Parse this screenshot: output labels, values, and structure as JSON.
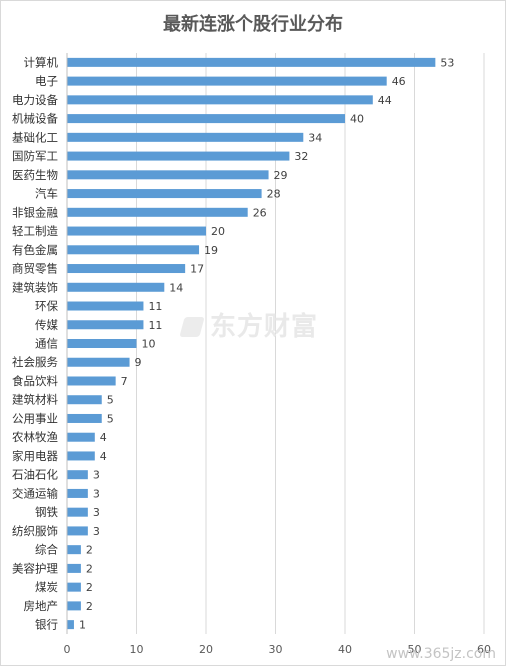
{
  "chart_data": {
    "type": "bar",
    "orientation": "horizontal",
    "title": "最新连涨个股行业分布",
    "categories": [
      "计算机",
      "电子",
      "电力设备",
      "机械设备",
      "基础化工",
      "国防军工",
      "医药生物",
      "汽车",
      "非银金融",
      "轻工制造",
      "有色金属",
      "商贸零售",
      "建筑装饰",
      "环保",
      "传媒",
      "通信",
      "社会服务",
      "食品饮料",
      "建筑材料",
      "公用事业",
      "农林牧渔",
      "家用电器",
      "石油石化",
      "交通运输",
      "钢铁",
      "纺织服饰",
      "综合",
      "美容护理",
      "煤炭",
      "房地产",
      "银行"
    ],
    "values": [
      53,
      46,
      44,
      40,
      34,
      32,
      29,
      28,
      26,
      20,
      19,
      17,
      14,
      11,
      11,
      10,
      9,
      7,
      5,
      5,
      4,
      4,
      3,
      3,
      3,
      3,
      2,
      2,
      2,
      2,
      1
    ],
    "xlim": [
      0,
      60
    ],
    "xticks": [
      "0",
      "10",
      "20",
      "30",
      "40",
      "50",
      "60"
    ],
    "xlabel": "",
    "ylabel": "",
    "grid": "vertical",
    "bar_color": "#5b9bd5",
    "data_labels": true
  },
  "watermark": "东方财富",
  "site_mark": "www.365jz.com"
}
